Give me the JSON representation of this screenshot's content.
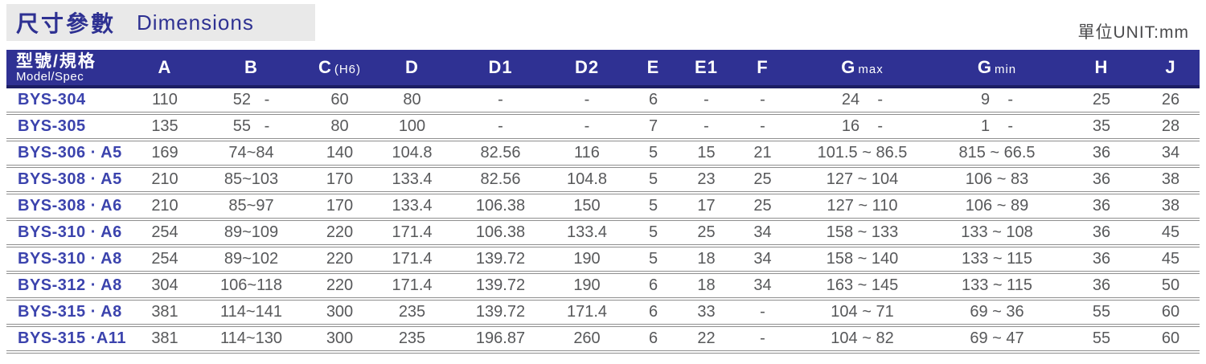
{
  "header": {
    "title_zh": "尺寸參數",
    "title_en": "Dimensions",
    "unit_label": "單位UNIT:mm"
  },
  "colors": {
    "accent_blue": "#2f3193",
    "accent_blue_dark": "#1b1d63",
    "title_blue": "#2e3192",
    "model_blue": "#3b43ad",
    "value_gray": "#57585a",
    "title_bg": "#e9e9e9"
  },
  "table": {
    "columns": [
      {
        "main": "型號/規格",
        "sub": "Model/Spec"
      },
      {
        "main": "A",
        "sub": ""
      },
      {
        "main": "B",
        "sub": ""
      },
      {
        "main": "C",
        "sub": "(H6)"
      },
      {
        "main": "D",
        "sub": ""
      },
      {
        "main": "D1",
        "sub": ""
      },
      {
        "main": "D2",
        "sub": ""
      },
      {
        "main": "E",
        "sub": ""
      },
      {
        "main": "E1",
        "sub": ""
      },
      {
        "main": "F",
        "sub": ""
      },
      {
        "main": "G",
        "sub": "max"
      },
      {
        "main": "G",
        "sub": "min"
      },
      {
        "main": "H",
        "sub": ""
      },
      {
        "main": "J",
        "sub": ""
      }
    ],
    "rows": [
      [
        "BYS-304",
        "110",
        "52   -",
        "60",
        "80",
        "-",
        "-",
        "6",
        "-",
        "-",
        "24    -",
        "9    -",
        "25",
        "26"
      ],
      [
        "BYS-305",
        "135",
        "55   -",
        "80",
        "100",
        "-",
        "-",
        "7",
        "-",
        "-",
        "16    -",
        "1    -",
        "35",
        "28"
      ],
      [
        "BYS-306 · A5",
        "169",
        "74~84",
        "140",
        "104.8",
        "82.56",
        "116",
        "5",
        "15",
        "21",
        "101.5 ~ 86.5",
        "815 ~ 66.5",
        "36",
        "34"
      ],
      [
        "BYS-308 · A5",
        "210",
        "85~103",
        "170",
        "133.4",
        "82.56",
        "104.8",
        "5",
        "23",
        "25",
        "127 ~ 104",
        "106 ~ 83",
        "36",
        "38"
      ],
      [
        "BYS-308 · A6",
        "210",
        "85~97",
        "170",
        "133.4",
        "106.38",
        "150",
        "5",
        "17",
        "25",
        "127 ~ 110",
        "106 ~ 89",
        "36",
        "38"
      ],
      [
        "BYS-310 · A6",
        "254",
        "89~109",
        "220",
        "171.4",
        "106.38",
        "133.4",
        "5",
        "25",
        "34",
        "158 ~ 133",
        "133 ~ 108",
        "36",
        "45"
      ],
      [
        "BYS-310 · A8",
        "254",
        "89~102",
        "220",
        "171.4",
        "139.72",
        "190",
        "5",
        "18",
        "34",
        "158 ~ 140",
        "133 ~ 115",
        "36",
        "45"
      ],
      [
        "BYS-312 · A8",
        "304",
        "106~118",
        "220",
        "171.4",
        "139.72",
        "190",
        "6",
        "18",
        "34",
        "163 ~ 145",
        "133 ~ 115",
        "36",
        "50"
      ],
      [
        "BYS-315 · A8",
        "381",
        "114~141",
        "300",
        "235",
        "139.72",
        "171.4",
        "6",
        "33",
        "-",
        "104 ~ 71",
        "69 ~ 36",
        "55",
        "60"
      ],
      [
        "BYS-315 ·A11",
        "381",
        "114~130",
        "300",
        "235",
        "196.87",
        "260",
        "6",
        "22",
        "-",
        "104 ~ 82",
        "69 ~ 47",
        "55",
        "60"
      ]
    ]
  }
}
